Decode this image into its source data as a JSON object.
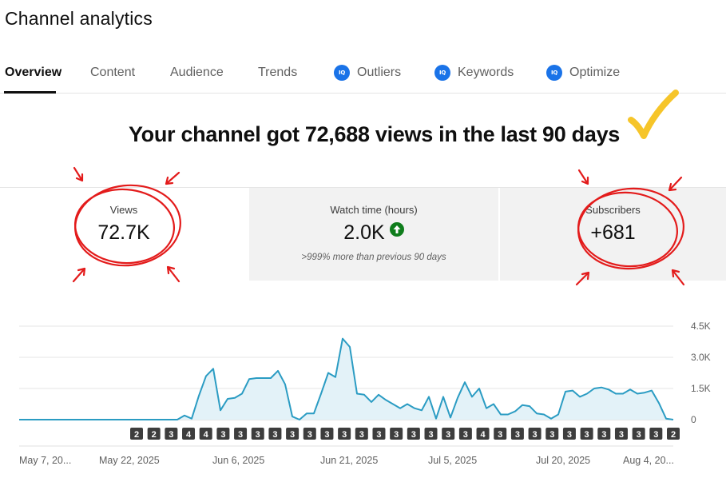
{
  "page": {
    "title": "Channel analytics"
  },
  "tabs": [
    {
      "label": "Overview",
      "active": true,
      "vidiq": false
    },
    {
      "label": "Content",
      "active": false,
      "vidiq": false
    },
    {
      "label": "Audience",
      "active": false,
      "vidiq": false
    },
    {
      "label": "Trends",
      "active": false,
      "vidiq": false
    },
    {
      "label": "Outliers",
      "active": false,
      "vidiq": true
    },
    {
      "label": "Keywords",
      "active": false,
      "vidiq": true
    },
    {
      "label": "Optimize",
      "active": false,
      "vidiq": true
    }
  ],
  "vidiq_badge_text": "IQ",
  "headline": "Your channel got 72,688 views in the last 90 days",
  "cards": [
    {
      "label": "Views",
      "value": "72.7K",
      "sub": ""
    },
    {
      "label": "Watch time (hours)",
      "value": "2.0K",
      "sub": ">999% more than previous 90 days"
    },
    {
      "label": "Subscribers",
      "value": "+681",
      "sub": ""
    }
  ],
  "colors": {
    "accent_line": "#2b9cc3",
    "area_fill": "#e3f2f8",
    "annotation_red": "#e31b1b",
    "check_yellow": "#f6c52a",
    "vidiq_blue": "#1a73e8",
    "up_green": "#0f7d1c",
    "marker_dark": "#606060"
  },
  "chart_data": {
    "type": "area",
    "metric": "Views",
    "y_ticks": [
      "0",
      "1.5K",
      "3.0K",
      "4.5K"
    ],
    "ylim": [
      0,
      4500
    ],
    "x_labels": [
      "May 7, 20...",
      "May 22, 2025",
      "Jun 6, 2025",
      "Jun 21, 2025",
      "Jul 5, 2025",
      "Jul 20, 2025",
      "Aug 4, 20..."
    ],
    "grid": true,
    "values": [
      0,
      0,
      0,
      0,
      0,
      0,
      0,
      0,
      0,
      0,
      0,
      0,
      0,
      0,
      0,
      0,
      0,
      0,
      0,
      0,
      0,
      0,
      0,
      200,
      50,
      1150,
      2100,
      2450,
      450,
      1000,
      1050,
      1250,
      1950,
      2000,
      2000,
      2000,
      2350,
      1700,
      150,
      0,
      300,
      300,
      1250,
      2250,
      2050,
      3900,
      3500,
      1250,
      1200,
      850,
      1200,
      950,
      750,
      550,
      750,
      550,
      450,
      1100,
      50,
      1100,
      100,
      1050,
      1800,
      1100,
      1500,
      550,
      750,
      250,
      250,
      400,
      700,
      650,
      300,
      250,
      50,
      250,
      1350,
      1400,
      1100,
      1250,
      1500,
      1550,
      1450,
      1250,
      1250,
      1450,
      1250,
      1300,
      1400,
      800,
      50,
      0
    ],
    "markers": [
      "2",
      "2",
      "3",
      "4",
      "4",
      "3",
      "3",
      "3",
      "3",
      "3",
      "3",
      "3",
      "3",
      "3",
      "3",
      "3",
      "3",
      "3",
      "3",
      "3",
      "4",
      "3",
      "3",
      "3",
      "3",
      "3",
      "3",
      "3",
      "3",
      "3",
      "3",
      "2"
    ]
  }
}
